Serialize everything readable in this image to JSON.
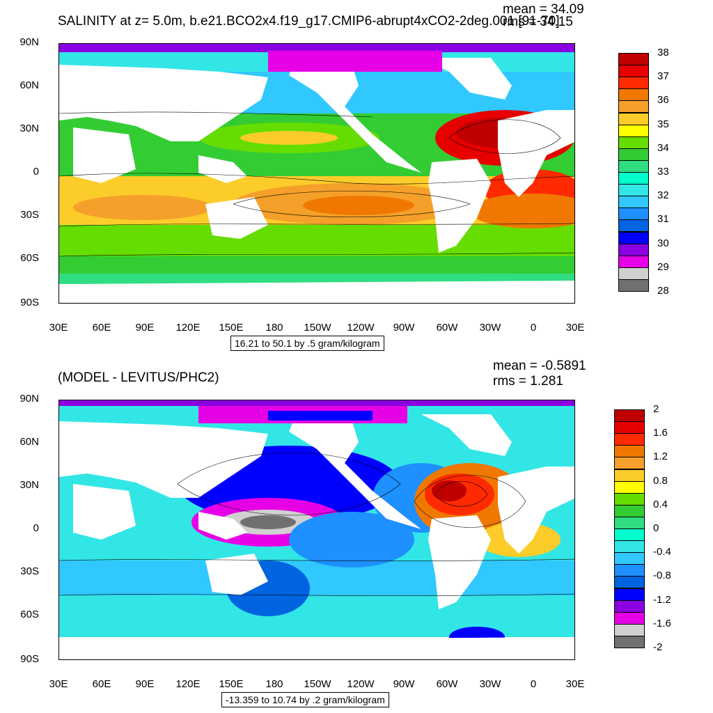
{
  "top": {
    "title": "SALINITY at z=   5.0m, b.e21.BCO2x4.f19_g17.CMIP6-abrupt4xCO2-2deg.001 [91-70]",
    "mean": "mean = 34.09",
    "rms": "rms = 34.15",
    "range_text": "16.21 to 50.1 by .5 gram/kilogram",
    "lat_labels": [
      "90N",
      "60N",
      "30N",
      "0",
      "30S",
      "60S",
      "90S"
    ],
    "lon_labels": [
      "30E",
      "60E",
      "90E",
      "120E",
      "150E",
      "180",
      "150W",
      "120W",
      "90W",
      "60W",
      "30W",
      "0",
      "30E"
    ],
    "colorbar": {
      "labels": [
        "38",
        "37",
        "36",
        "35",
        "34",
        "33",
        "32",
        "31",
        "30",
        "29",
        "28"
      ],
      "colors": [
        "#c00000",
        "#e60000",
        "#ff2a00",
        "#f07800",
        "#f5a02a",
        "#fccc2a",
        "#ffff00",
        "#66dd00",
        "#33cc33",
        "#30dd80",
        "#00ffcc",
        "#33e6e6",
        "#30c8ff",
        "#1e90ff",
        "#0064e0",
        "#0000ff",
        "#8a00e0",
        "#e600e6",
        "#d0d0d0",
        "#707070"
      ]
    }
  },
  "bottom": {
    "title": "(MODEL - LEVITUS/PHC2)",
    "mean": "mean = -0.5891",
    "rms": "rms = 1.281",
    "range_text": "-13.359 to 10.74 by .2 gram/kilogram",
    "lat_labels": [
      "90N",
      "60N",
      "30N",
      "0",
      "30S",
      "60S",
      "90S"
    ],
    "lon_labels": [
      "30E",
      "60E",
      "90E",
      "120E",
      "150E",
      "180",
      "150W",
      "120W",
      "90W",
      "60W",
      "30W",
      "0",
      "30E"
    ],
    "colorbar": {
      "labels": [
        "2",
        "1.6",
        "1.2",
        "0.8",
        "0.4",
        "0",
        "-0.4",
        "-0.8",
        "-1.2",
        "-1.6",
        "-2"
      ],
      "colors": [
        "#c00000",
        "#e60000",
        "#ff2a00",
        "#f07800",
        "#f5a02a",
        "#fccc2a",
        "#ffff00",
        "#66dd00",
        "#33cc33",
        "#30dd80",
        "#00ffcc",
        "#33e6e6",
        "#30c8ff",
        "#1e90ff",
        "#0064e0",
        "#0000ff",
        "#8a00e0",
        "#e600e6",
        "#d0d0d0",
        "#707070"
      ]
    }
  }
}
